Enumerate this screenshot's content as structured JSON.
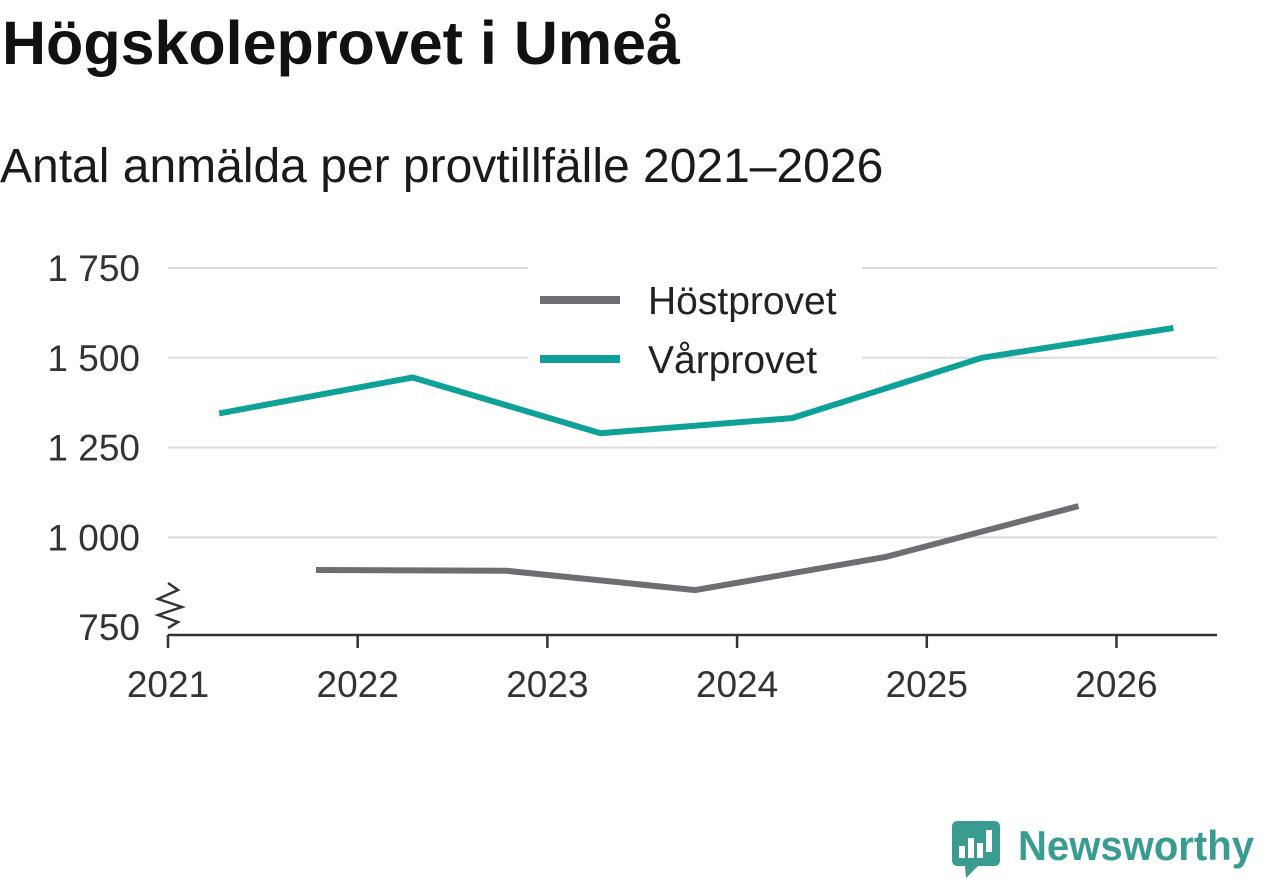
{
  "colors": {
    "background": "#ffffff",
    "title": "#111111",
    "text": "#333333",
    "grid": "#dcdcdc",
    "axis": "#333333"
  },
  "brand": {
    "name": "Newsworthy",
    "color": "#3a9b91",
    "icon": "newsworthy-bar-chart-badge-icon"
  },
  "chart_data": {
    "type": "line",
    "title": "Högskoleprovet i Umeå",
    "subtitle": "Antal anmälda per provtillfälle 2021–2026",
    "xlim": [
      2021,
      2026.53
    ],
    "ylim": [
      728,
      1750
    ],
    "y_axis_break": true,
    "grid": true,
    "x_ticks": [
      {
        "value": 2021,
        "label": "2021"
      },
      {
        "value": 2022,
        "label": "2022"
      },
      {
        "value": 2023,
        "label": "2023"
      },
      {
        "value": 2024,
        "label": "2024"
      },
      {
        "value": 2025,
        "label": "2025"
      },
      {
        "value": 2026,
        "label": "2026"
      }
    ],
    "y_ticks": [
      {
        "value": 1750,
        "label": "1 750"
      },
      {
        "value": 1500,
        "label": "1 500"
      },
      {
        "value": 1250,
        "label": "1 250"
      },
      {
        "value": 1000,
        "label": "1 000"
      },
      {
        "value": 750,
        "label": "750"
      }
    ],
    "legend": {
      "position": "top-center"
    },
    "series": [
      {
        "name": "Höstprovet",
        "color": "#6e6d72",
        "x": [
          2021.78,
          2022.78,
          2023.78,
          2024.78,
          2025.8
        ],
        "values": [
          909,
          907,
          853,
          945,
          1087
        ]
      },
      {
        "name": "Vårprovet",
        "color": "#0ea198",
        "x": [
          2021.27,
          2022.29,
          2023.28,
          2024.29,
          2025.29,
          2026.3
        ],
        "values": [
          1345,
          1445,
          1290,
          1332,
          1500,
          1583
        ]
      }
    ]
  }
}
